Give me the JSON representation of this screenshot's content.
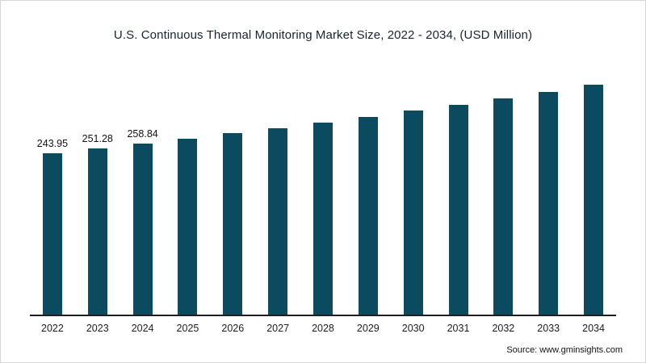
{
  "title": "U.S. Continuous Thermal Monitoring Market Size, 2022 - 2034, (USD Million)",
  "source": "Source: www.gminsights.com",
  "colors": {
    "bar": "#0c4a5f",
    "axis": "#1f1f1f"
  },
  "chart_data": {
    "type": "bar",
    "title": "U.S. Continuous Thermal Monitoring Market Size, 2022 - 2034, (USD Million)",
    "categories": [
      "2022",
      "2023",
      "2024",
      "2025",
      "2026",
      "2027",
      "2028",
      "2029",
      "2030",
      "2031",
      "2032",
      "2033",
      "2034"
    ],
    "values": [
      243.95,
      251.28,
      258.84,
      266.6,
      274.6,
      282.9,
      291.4,
      300.1,
      309.1,
      318.4,
      328.0,
      337.8,
      347.9
    ],
    "data_labels": [
      "243.95",
      "251.28",
      "258.84"
    ],
    "labeled_bar_count": 3,
    "xlabel": "",
    "ylabel": "USD Million",
    "ylim": [
      0,
      368
    ],
    "grid": false,
    "legend": false,
    "bar_color": "#0c4a5f"
  }
}
